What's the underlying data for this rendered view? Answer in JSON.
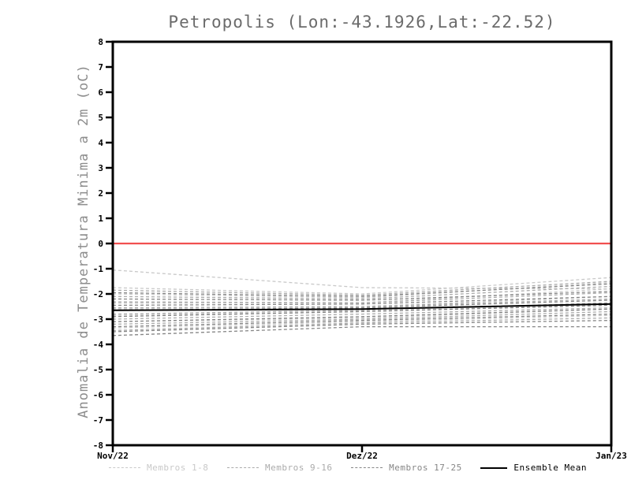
{
  "chart_data": {
    "type": "line",
    "title": "Petropolis (Lon:-43.1926,Lat:-22.52)",
    "ylabel": "Anomalia de Temperatura Minima a 2m (oC)",
    "x_categories": [
      "Nov/22",
      "Dez/22",
      "Jan/23"
    ],
    "ylim": [
      -8,
      8
    ],
    "y_tick_step": 1,
    "grid": false,
    "axis_color": "#000000",
    "zero_line": {
      "value": 0,
      "color": "#f15050"
    },
    "groups": [
      {
        "name": "Membros 1-8",
        "color": "#c9c9c9",
        "members": [
          [
            -1.05,
            -1.75,
            -1.8
          ],
          [
            -1.75,
            -2.0,
            -1.35
          ],
          [
            -2.0,
            -2.15,
            -1.55
          ],
          [
            -2.3,
            -2.35,
            -1.8
          ],
          [
            -2.6,
            -2.5,
            -2.1
          ],
          [
            -2.85,
            -2.7,
            -2.4
          ],
          [
            -3.1,
            -2.95,
            -2.6
          ],
          [
            -3.35,
            -3.1,
            -2.85
          ]
        ]
      },
      {
        "name": "Membros 9-16",
        "color": "#ababab",
        "members": [
          [
            -1.85,
            -2.05,
            -1.5
          ],
          [
            -2.1,
            -2.2,
            -1.7
          ],
          [
            -2.35,
            -2.35,
            -1.95
          ],
          [
            -2.55,
            -2.5,
            -2.2
          ],
          [
            -2.8,
            -2.65,
            -2.35
          ],
          [
            -3.0,
            -2.8,
            -2.55
          ],
          [
            -3.2,
            -3.0,
            -2.7
          ],
          [
            -3.45,
            -3.15,
            -2.95
          ]
        ]
      },
      {
        "name": "Membros 17-25",
        "color": "#868686",
        "members": [
          [
            -1.95,
            -2.1,
            -1.6
          ],
          [
            -2.2,
            -2.25,
            -1.9
          ],
          [
            -2.45,
            -2.4,
            -2.1
          ],
          [
            -2.65,
            -2.55,
            -2.25
          ],
          [
            -2.9,
            -2.7,
            -2.45
          ],
          [
            -3.1,
            -2.9,
            -2.6
          ],
          [
            -3.3,
            -3.05,
            -2.8
          ],
          [
            -3.5,
            -3.2,
            -3.05
          ],
          [
            -3.65,
            -3.3,
            -3.3
          ]
        ]
      }
    ],
    "ensemble_mean": {
      "name": "Ensemble Mean",
      "color": "#000000",
      "values": [
        -2.65,
        -2.6,
        -2.4
      ]
    },
    "legend": [
      {
        "label": "Membros 1-8",
        "color": "#c9c9c9",
        "style": "dashed"
      },
      {
        "label": "Membros 9-16",
        "color": "#ababab",
        "style": "dashed"
      },
      {
        "label": "Membros 17-25",
        "color": "#868686",
        "style": "dashed"
      },
      {
        "label": "Ensemble Mean",
        "color": "#000000",
        "style": "solid"
      }
    ]
  }
}
